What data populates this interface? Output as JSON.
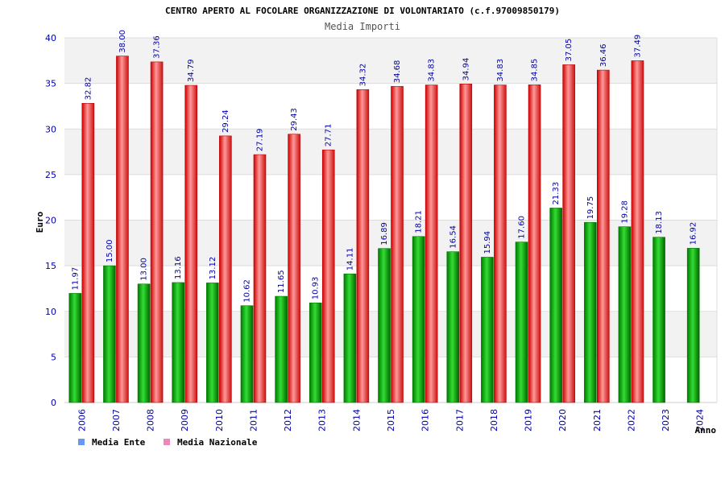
{
  "chart_data": {
    "type": "bar",
    "title": "CENTRO APERTO AL FOCOLARE ORGANIZZAZIONE DI VOLONTARIATO (c.f.97009850179)",
    "subtitle": "Media Importi",
    "ylabel": "Euro",
    "xlabel": "Anno",
    "ylim": [
      0,
      40
    ],
    "yticks": [
      0,
      5,
      10,
      15,
      20,
      25,
      30,
      35,
      40
    ],
    "grid": true,
    "legend_position": "bottom-left",
    "categories": [
      "2006",
      "2007",
      "2008",
      "2009",
      "2010",
      "2011",
      "2012",
      "2013",
      "2014",
      "2015",
      "2016",
      "2017",
      "2018",
      "2019",
      "2020",
      "2021",
      "2022",
      "2023",
      "2024"
    ],
    "series": [
      {
        "name": "Media Ente",
        "color": "#00aa00",
        "legend_color": "#6699ee",
        "values": [
          11.97,
          15.0,
          13.0,
          13.16,
          13.12,
          10.62,
          11.65,
          10.93,
          14.11,
          16.89,
          18.21,
          16.54,
          15.94,
          17.6,
          21.33,
          19.75,
          19.28,
          18.13,
          16.92
        ],
        "labels": [
          "11.97",
          "15.00",
          "13.00",
          "13.16",
          "13.12",
          "10.62",
          "11.65",
          "10.93",
          "14.11",
          "16.89",
          "18.21",
          "16.54",
          "15.94",
          "17.60",
          "21.33",
          "19.75",
          "19.28",
          "18.13",
          "16.92"
        ]
      },
      {
        "name": "Media Nazionale",
        "color": "#ee2222",
        "legend_color": "#ee88bb",
        "values": [
          32.82,
          38.0,
          37.36,
          34.79,
          29.24,
          27.19,
          29.43,
          27.71,
          34.32,
          34.68,
          34.83,
          34.94,
          34.83,
          34.85,
          37.05,
          36.46,
          37.49,
          null,
          null
        ],
        "labels": [
          "32.82",
          "38.00",
          "37.36",
          "34.79",
          "29.24",
          "27.19",
          "29.43",
          "27.71",
          "34.32",
          "34.68",
          "34.83",
          "34.94",
          "34.83",
          "34.85",
          "37.05",
          "36.46",
          "37.49",
          null,
          null
        ]
      }
    ]
  }
}
